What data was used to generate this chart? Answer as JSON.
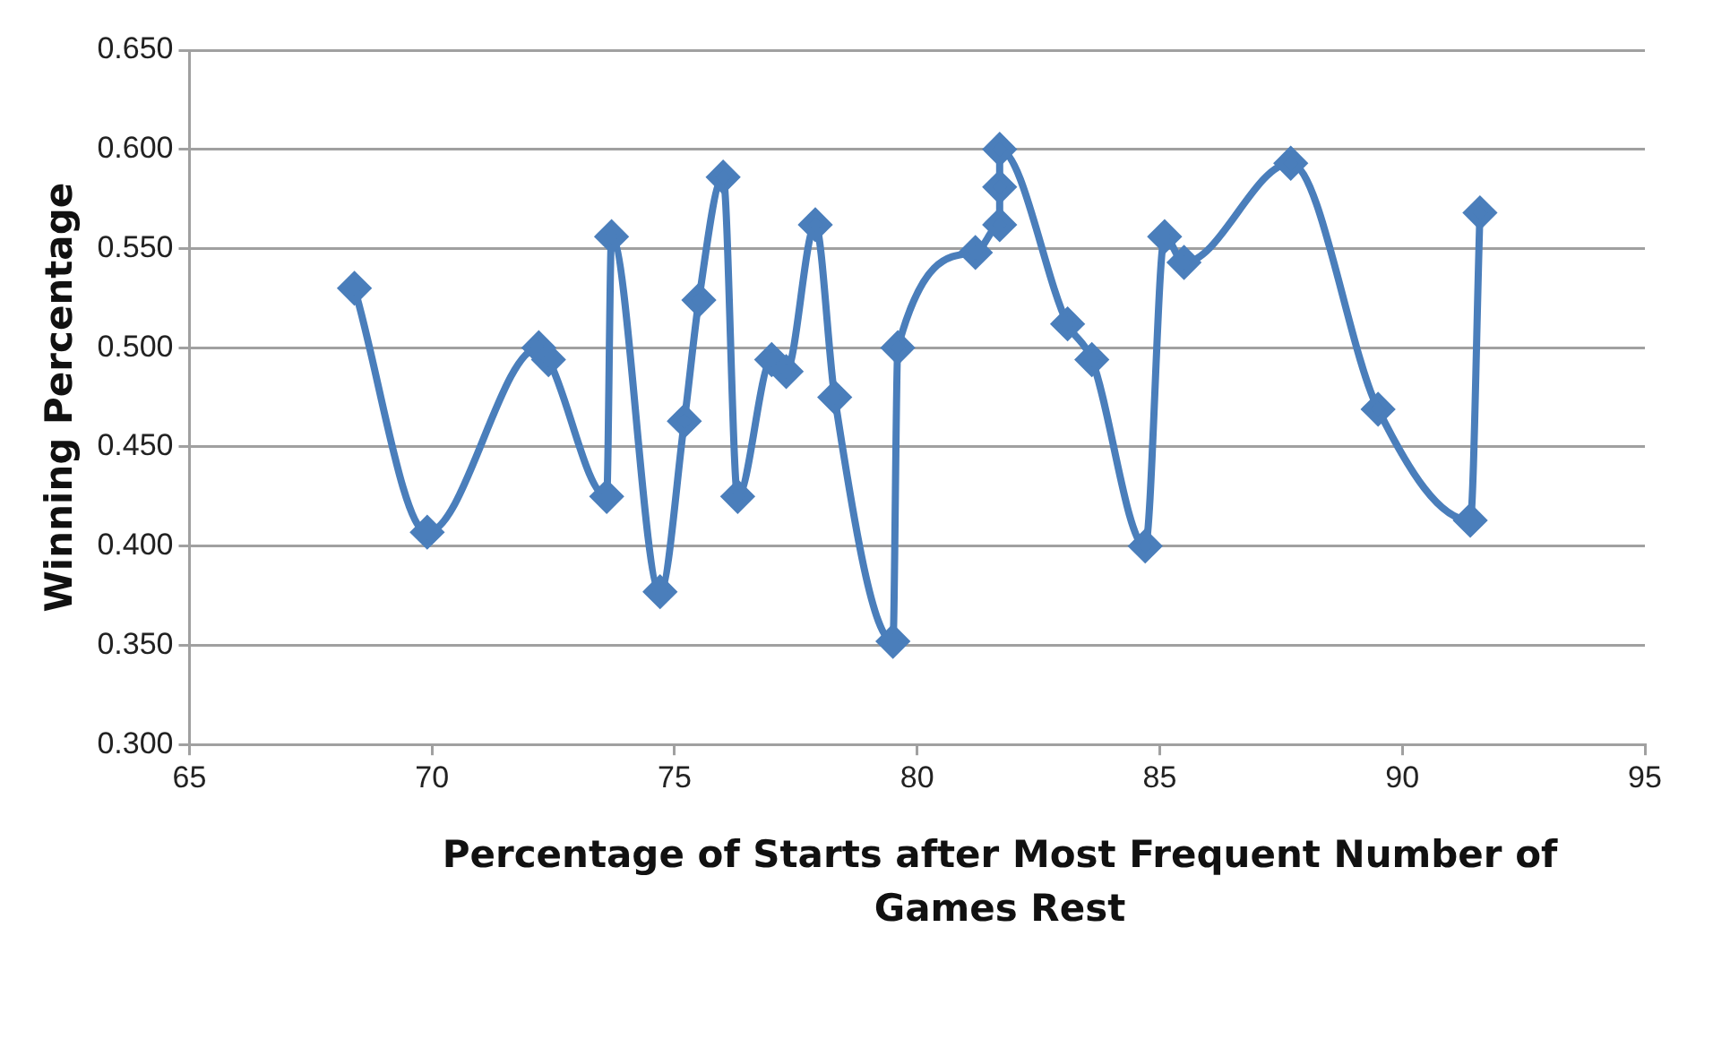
{
  "chart_data": {
    "type": "line",
    "xlabel": "Percentage of Starts after Most Frequent Number of Games Rest",
    "ylabel": "Winning Percentage",
    "x": [
      68.4,
      69.9,
      72.2,
      72.4,
      73.6,
      73.7,
      74.7,
      75.2,
      75.5,
      76.0,
      76.3,
      77.0,
      77.3,
      77.9,
      78.3,
      79.5,
      79.6,
      81.2,
      81.7,
      81.7,
      81.7,
      83.1,
      83.6,
      84.7,
      85.1,
      85.5,
      87.7,
      89.5,
      91.4,
      91.6
    ],
    "series": [
      {
        "color": "#4a7ebb",
        "values": [
          0.53,
          0.407,
          0.5,
          0.494,
          0.425,
          0.556,
          0.377,
          0.463,
          0.524,
          0.586,
          0.425,
          0.494,
          0.488,
          0.562,
          0.475,
          0.352,
          0.5,
          0.548,
          0.562,
          0.581,
          0.6,
          0.512,
          0.494,
          0.4,
          0.556,
          0.543,
          0.593,
          0.469,
          0.413,
          0.568
        ]
      }
    ],
    "xlim": [
      65,
      95
    ],
    "xticks": [
      65,
      70,
      75,
      80,
      85,
      90,
      95
    ],
    "ylim": [
      0.3,
      0.65
    ],
    "yticks": [
      {
        "value": 0.3,
        "label": "0.300"
      },
      {
        "value": 0.35,
        "label": "0.350"
      },
      {
        "value": 0.4,
        "label": "0.400"
      },
      {
        "value": 0.45,
        "label": "0.450"
      },
      {
        "value": 0.5,
        "label": "0.500"
      },
      {
        "value": 0.55,
        "label": "0.550"
      },
      {
        "value": 0.6,
        "label": "0.600"
      },
      {
        "value": 0.65,
        "label": "0.650"
      }
    ],
    "grid": "y",
    "legend": false,
    "marker": "diamond",
    "line_style": "solid"
  }
}
